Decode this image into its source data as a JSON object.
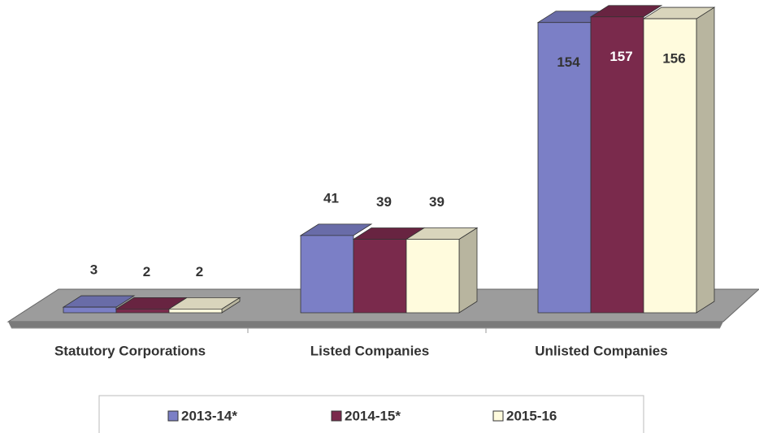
{
  "chart_data": {
    "type": "bar3d",
    "categories": [
      "Statutory Corporations",
      "Listed Companies",
      "Unlisted Companies"
    ],
    "series": [
      {
        "name": "2013-14*",
        "color": "#7b7fc6",
        "values": [
          3,
          41,
          154
        ]
      },
      {
        "name": "2014-15*",
        "color": "#7a2a4c",
        "values": [
          2,
          39,
          157
        ]
      },
      {
        "name": "2015-16",
        "color": "#fffbdd",
        "values": [
          2,
          39,
          156
        ]
      }
    ]
  }
}
